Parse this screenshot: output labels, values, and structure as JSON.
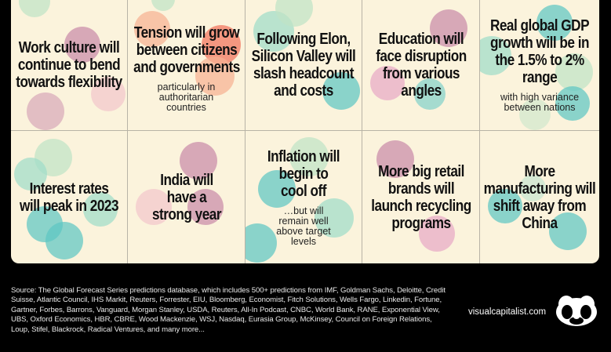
{
  "predictions": [
    {
      "headline": "Work culture will continue to bend towards flexibility",
      "detail": ""
    },
    {
      "headline": "Tension will grow between citizens and governments",
      "detail": "particularly in authoritarian countries"
    },
    {
      "headline": "Following Elon, Silicon Valley will slash headcount and costs",
      "detail": ""
    },
    {
      "headline": "Education will face disruption from various angles",
      "detail": ""
    },
    {
      "headline": "Real global GDP growth will be in the 1.5% to 2% range",
      "detail": "with high variance between nations"
    },
    {
      "headline": "Interest rates will peak in 2023",
      "detail": ""
    },
    {
      "headline": "India will have a strong year",
      "detail": ""
    },
    {
      "headline": "Inflation will begin to cool off",
      "detail": "…but will remain well above target levels"
    },
    {
      "headline": "More big retail brands will launch recycling programs",
      "detail": ""
    },
    {
      "headline": "More manufacturing will shift away from China",
      "detail": ""
    }
  ],
  "footer": {
    "source_text": "Source: The Global Forecast Series predictions database, which includes 500+ predictions from IMF, Goldman Sachs, Deloitte, Credit Suisse, Atlantic Council, IHS Markit, Reuters, Forrester, EIU, Bloomberg, Economist, Fitch Solutions, Wells Fargo, Linkedin, Fortune, Gartner, Forbes, Barrons, Vanguard, Morgan Stanley, USDA, Reuters, All-In Podcast, CNBC, World Bank, RANE, Exponential View, UBS, Oxford Economics, HBR, CBRE, Wood Mackenzie, WSJ, Nasdaq, Eurasia Group, McKinsey, Council on Foreign Relations, Loup, Stifel, Blackrock, Radical Ventures, and many more...",
    "brand": "visualcapitalist.com",
    "logo_icon": "visual-capitalist-logo-icon"
  },
  "colors": {
    "card_background": "#fbf3dc",
    "page_background": "#000000",
    "bubble_green": "#bfe3c6",
    "bubble_teal": "#5ec6c4",
    "bubble_pink": "#e8a9c6",
    "bubble_red": "#f1735d"
  }
}
